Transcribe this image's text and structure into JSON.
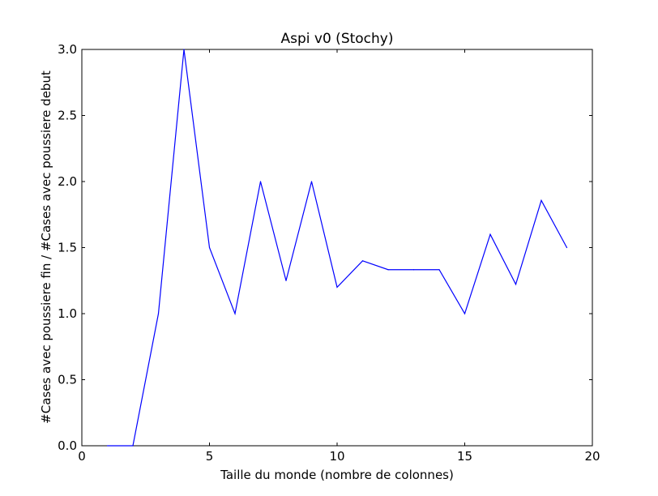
{
  "chart_data": {
    "type": "line",
    "title": "Aspi v0 (Stochy)",
    "xlabel": "Taille du monde (nombre de colonnes)",
    "ylabel": "#Cases avec poussiere fin / #Cases avec poussiere debut",
    "xlim": [
      0,
      20
    ],
    "ylim": [
      0,
      3.0
    ],
    "xticks": [
      "0",
      "5",
      "10",
      "15",
      "20"
    ],
    "yticks": [
      "0.0",
      "0.5",
      "1.0",
      "1.5",
      "2.0",
      "2.5",
      "3.0"
    ],
    "grid": false,
    "legend": "none",
    "series": [
      {
        "color": "#0000ff",
        "x": [
          1,
          2,
          3,
          4,
          5,
          6,
          7,
          8,
          9,
          10,
          11,
          12,
          13,
          14,
          15,
          16,
          17,
          18,
          19
        ],
        "y": [
          0.0,
          0.0,
          1.0,
          3.0,
          1.5,
          1.0,
          2.0,
          1.25,
          2.0,
          1.2,
          1.4,
          1.333,
          1.333,
          1.333,
          1.0,
          1.6,
          1.222,
          1.857,
          1.5
        ]
      }
    ]
  }
}
